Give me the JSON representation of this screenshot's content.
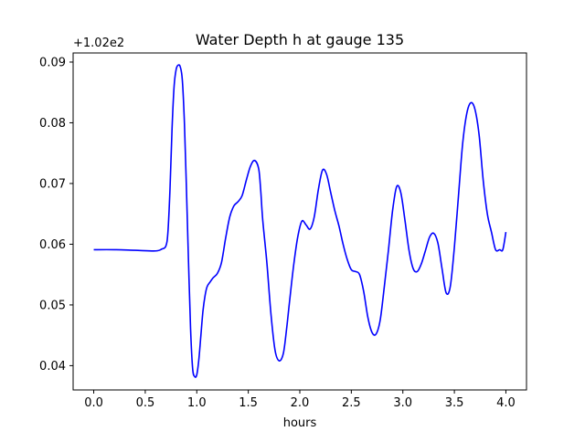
{
  "chart_data": {
    "type": "line",
    "title": "Water Depth h at gauge 135",
    "xlabel": "hours",
    "ylabel": "",
    "y_offset_label": "+1.02e2",
    "y_offset_value": 102,
    "xlim": [
      -0.2,
      4.2
    ],
    "ylim": [
      0.036,
      0.0915
    ],
    "x_ticks": [
      0.0,
      0.5,
      1.0,
      1.5,
      2.0,
      2.5,
      3.0,
      3.5,
      4.0
    ],
    "x_tick_labels": [
      "0.0",
      "0.5",
      "1.0",
      "1.5",
      "2.0",
      "2.5",
      "3.0",
      "3.5",
      "4.0"
    ],
    "y_ticks": [
      0.04,
      0.05,
      0.06,
      0.07,
      0.08,
      0.09
    ],
    "y_tick_labels": [
      "0.04",
      "0.05",
      "0.06",
      "0.07",
      "0.08",
      "0.09"
    ],
    "grid": false,
    "series": [
      {
        "color": "#0000ff",
        "x": [
          0.0,
          0.2,
          0.4,
          0.6,
          0.66,
          0.7,
          0.72,
          0.74,
          0.76,
          0.78,
          0.8,
          0.82,
          0.84,
          0.86,
          0.88,
          0.9,
          0.92,
          0.94,
          0.96,
          0.98,
          1.0,
          1.02,
          1.04,
          1.06,
          1.08,
          1.1,
          1.13,
          1.16,
          1.2,
          1.24,
          1.28,
          1.32,
          1.36,
          1.4,
          1.44,
          1.48,
          1.52,
          1.56,
          1.6,
          1.62,
          1.64,
          1.68,
          1.72,
          1.76,
          1.8,
          1.84,
          1.87,
          1.9,
          1.94,
          1.98,
          2.02,
          2.06,
          2.1,
          2.14,
          2.18,
          2.22,
          2.26,
          2.3,
          2.34,
          2.38,
          2.42,
          2.46,
          2.5,
          2.54,
          2.58,
          2.62,
          2.66,
          2.7,
          2.74,
          2.78,
          2.82,
          2.86,
          2.9,
          2.94,
          2.98,
          3.02,
          3.06,
          3.1,
          3.14,
          3.18,
          3.22,
          3.26,
          3.3,
          3.34,
          3.38,
          3.42,
          3.46,
          3.5,
          3.54,
          3.58,
          3.62,
          3.66,
          3.7,
          3.74,
          3.78,
          3.82,
          3.86,
          3.9,
          3.94,
          3.97,
          4.0
        ],
        "y": [
          0.0591,
          0.0591,
          0.059,
          0.0589,
          0.0592,
          0.0597,
          0.062,
          0.069,
          0.079,
          0.086,
          0.0888,
          0.0895,
          0.0892,
          0.087,
          0.08,
          0.069,
          0.057,
          0.046,
          0.0395,
          0.0382,
          0.0385,
          0.041,
          0.045,
          0.049,
          0.0515,
          0.053,
          0.0538,
          0.0545,
          0.0552,
          0.057,
          0.061,
          0.0645,
          0.0663,
          0.067,
          0.068,
          0.0705,
          0.0728,
          0.0738,
          0.0725,
          0.069,
          0.064,
          0.057,
          0.0485,
          0.0425,
          0.0408,
          0.042,
          0.0458,
          0.0505,
          0.0565,
          0.0612,
          0.0638,
          0.0632,
          0.0625,
          0.0645,
          0.069,
          0.0722,
          0.0715,
          0.0685,
          0.0655,
          0.063,
          0.06,
          0.0575,
          0.0558,
          0.0555,
          0.055,
          0.0522,
          0.048,
          0.0455,
          0.0452,
          0.0475,
          0.053,
          0.059,
          0.0655,
          0.0695,
          0.0685,
          0.064,
          0.059,
          0.056,
          0.0555,
          0.0568,
          0.059,
          0.0612,
          0.0618,
          0.0602,
          0.056,
          0.052,
          0.053,
          0.0595,
          0.068,
          0.0765,
          0.0815,
          0.0833,
          0.0822,
          0.078,
          0.0705,
          0.065,
          0.062,
          0.0591,
          0.0591,
          0.0591,
          0.062
        ]
      }
    ]
  }
}
